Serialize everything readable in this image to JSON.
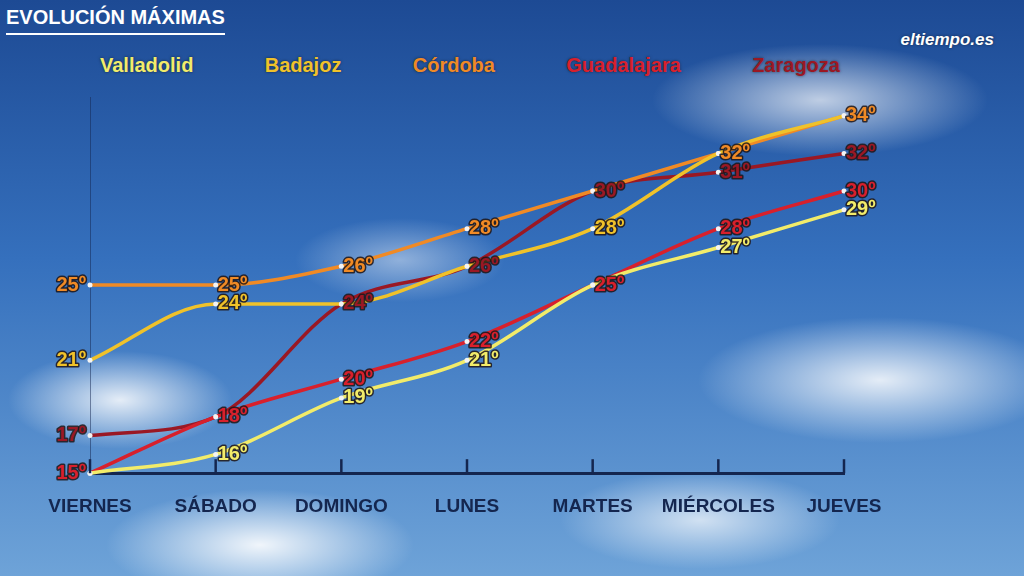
{
  "chart_data": {
    "type": "line",
    "title": "EVOLUCIÓN MÁXIMAS",
    "annotations": [
      "eltiempo.es"
    ],
    "categories": [
      "VIERNES",
      "SÁBADO",
      "DOMINGO",
      "LUNES",
      "MARTES",
      "MIÉRCOLES",
      "JUEVES"
    ],
    "series": [
      {
        "name": "Valladolid",
        "color": "#f2ec6a",
        "values": [
          15,
          16,
          19,
          21,
          25,
          27,
          29
        ],
        "value_labels": [
          null,
          "16º",
          "19º",
          "21º",
          null,
          "27º",
          "29º"
        ]
      },
      {
        "name": "Badajoz",
        "color": "#f0c22a",
        "values": [
          21,
          24,
          24,
          26,
          28,
          32,
          34
        ],
        "value_labels": [
          "21º",
          "24º",
          null,
          null,
          "28º",
          null,
          null
        ]
      },
      {
        "name": "Córdoba",
        "color": "#f08a25",
        "values": [
          25,
          25,
          26,
          28,
          30,
          32,
          34
        ],
        "value_labels": [
          "25º",
          "25º",
          "26º",
          "28º",
          null,
          "32º",
          "34º"
        ]
      },
      {
        "name": "Guadalajara",
        "color": "#d8202c",
        "values": [
          15,
          18,
          20,
          22,
          25,
          28,
          30
        ],
        "value_labels": [
          "15º",
          "18º",
          "20º",
          "22º",
          "25º",
          "28º",
          "30º"
        ]
      },
      {
        "name": "Zaragoza",
        "color": "#9a1824",
        "values": [
          17,
          18,
          24,
          26,
          30,
          31,
          32
        ],
        "value_labels": [
          "17º",
          null,
          "24º",
          "26º",
          "30º",
          "31º",
          "32º"
        ]
      }
    ],
    "ylim": [
      15,
      35
    ],
    "yticks": [],
    "tick_labels": "x",
    "grid": false,
    "legend": "top",
    "data_labels": true,
    "marker": "circle",
    "line_style": "solid"
  }
}
